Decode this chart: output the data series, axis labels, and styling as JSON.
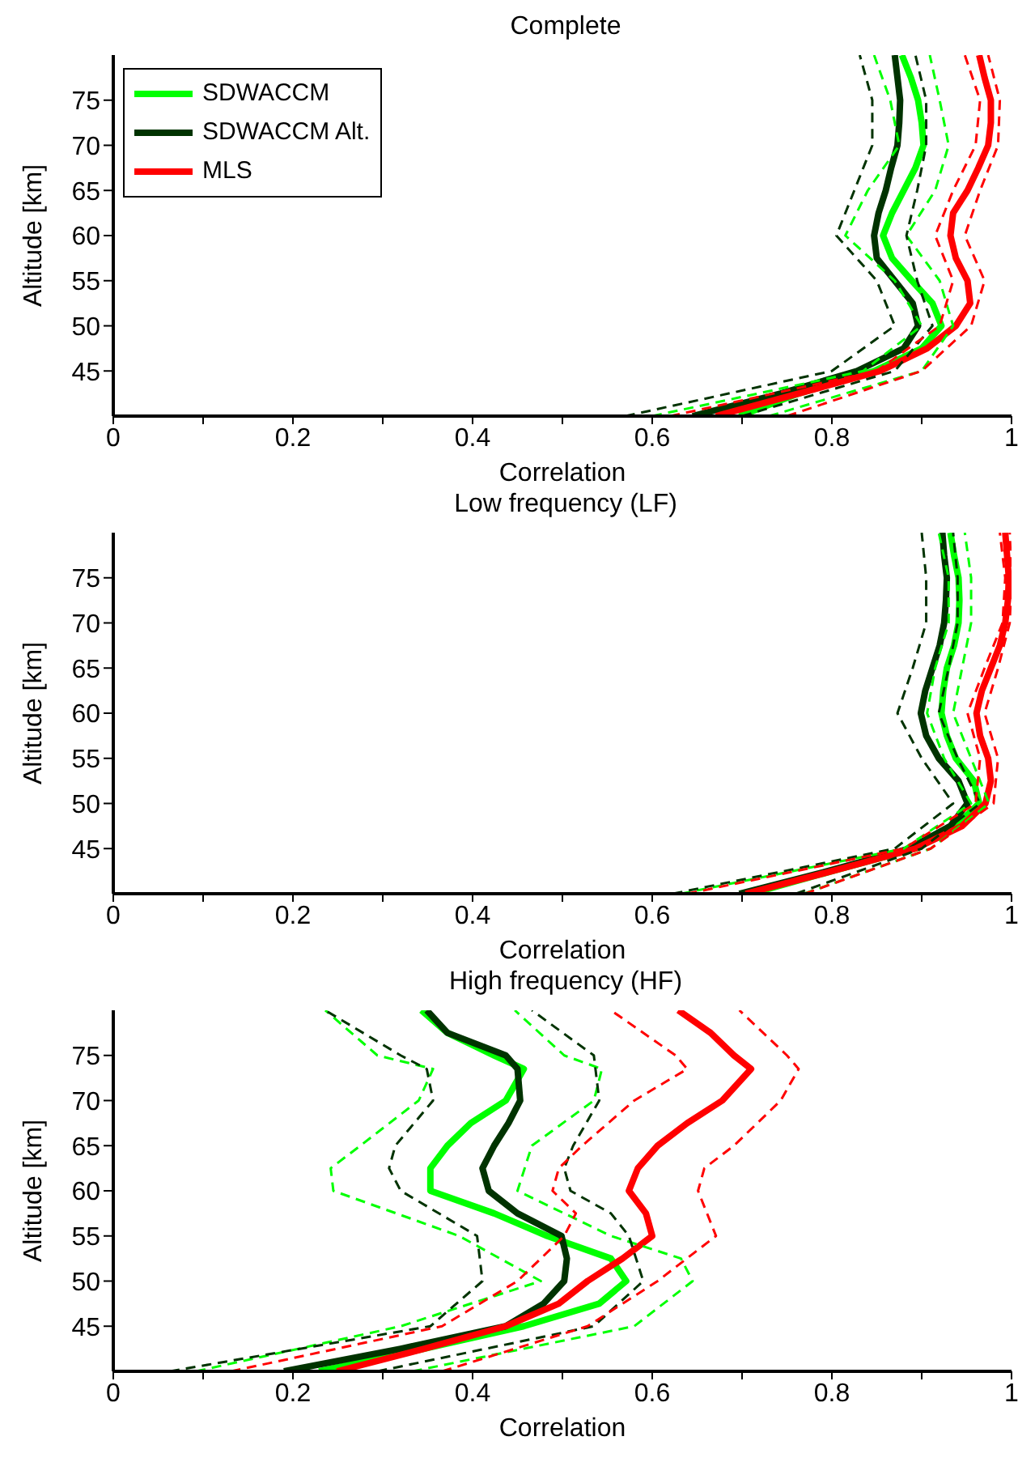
{
  "chart_data": [
    {
      "type": "line",
      "title": "Complete",
      "xlabel": "Correlation",
      "ylabel": "Altitude [km]",
      "xlim": [
        0,
        1
      ],
      "xticks": [
        0,
        {
          "value": 0.1,
          "label": null
        },
        0.2,
        {
          "value": 0.3,
          "label": null
        },
        0.4,
        {
          "value": 0.5,
          "label": null
        },
        0.6,
        {
          "value": 0.7,
          "label": null
        },
        0.8,
        {
          "value": 0.9,
          "label": null
        },
        1
      ],
      "ylim": [
        40,
        80
      ],
      "yticks": [
        45,
        50,
        55,
        60,
        65,
        70,
        75
      ],
      "legend": "top left",
      "series": [
        {
          "name": "SDWACCM",
          "color": "#00ff00",
          "x": [
            0.697,
            0.763,
            0.847,
            0.9,
            0.922,
            0.912,
            0.889,
            0.867,
            0.857,
            0.867,
            0.88,
            0.893,
            0.902,
            0.9,
            0.896,
            0.888,
            0.878
          ],
          "values": [
            40,
            42.5,
            45,
            47.5,
            50,
            52.5,
            55,
            57.5,
            60,
            62.5,
            65,
            67.5,
            70,
            72.5,
            75,
            77.5,
            80
          ]
        },
        {
          "name": "SDWACCM Alt.",
          "color": "#003300",
          "x": [
            0.645,
            0.743,
            0.828,
            0.88,
            0.896,
            0.89,
            0.87,
            0.85,
            0.847,
            0.852,
            0.86,
            0.866,
            0.873,
            0.875,
            0.876,
            0.873,
            0.87
          ],
          "values": [
            40,
            42.5,
            45,
            47.5,
            50,
            52.5,
            55,
            57.5,
            60,
            62.5,
            65,
            67.5,
            70,
            72.5,
            75,
            77.5,
            80
          ]
        },
        {
          "name": "MLS",
          "color": "#ff0000",
          "x": [
            0.671,
            0.763,
            0.854,
            0.906,
            0.938,
            0.954,
            0.951,
            0.938,
            0.932,
            0.935,
            0.951,
            0.963,
            0.974,
            0.977,
            0.977,
            0.97,
            0.964
          ],
          "values": [
            40,
            42.5,
            45,
            47.5,
            50,
            52.5,
            55,
            57.5,
            60,
            62.5,
            65,
            67.5,
            70,
            72.5,
            75,
            77.5,
            80
          ]
        },
        {
          "color": "#00ff00",
          "line_style": "dashed",
          "x": [
            0.6,
            0.835,
            0.9,
            0.87,
            0.815,
            0.84,
            0.875,
            0.865,
            0.847
          ],
          "values": [
            40,
            45,
            50,
            55,
            60,
            65,
            70,
            75,
            80
          ]
        },
        {
          "color": "#00ff00",
          "line_style": "dashed",
          "x": [
            0.73,
            0.9,
            0.935,
            0.92,
            0.883,
            0.915,
            0.93,
            0.92,
            0.909
          ],
          "values": [
            40,
            45,
            50,
            55,
            60,
            65,
            70,
            75,
            80
          ]
        },
        {
          "color": "#003300",
          "line_style": "dashed",
          "x": [
            0.57,
            0.8,
            0.87,
            0.85,
            0.805,
            0.825,
            0.845,
            0.845,
            0.831
          ],
          "values": [
            40,
            45,
            50,
            55,
            60,
            65,
            70,
            75,
            80
          ]
        },
        {
          "color": "#003300",
          "line_style": "dashed",
          "x": [
            0.7,
            0.87,
            0.912,
            0.895,
            0.883,
            0.895,
            0.905,
            0.905,
            0.893
          ],
          "values": [
            40,
            45,
            50,
            55,
            60,
            65,
            70,
            75,
            80
          ]
        },
        {
          "color": "#ff0000",
          "line_style": "dashed",
          "x": [
            0.62,
            0.85,
            0.92,
            0.935,
            0.915,
            0.935,
            0.96,
            0.965,
            0.948
          ],
          "values": [
            40,
            45,
            50,
            55,
            60,
            65,
            70,
            75,
            80
          ]
        },
        {
          "color": "#ff0000",
          "line_style": "dashed",
          "x": [
            0.75,
            0.9,
            0.955,
            0.97,
            0.948,
            0.965,
            0.985,
            0.987,
            0.974
          ],
          "values": [
            40,
            45,
            50,
            55,
            60,
            65,
            70,
            75,
            80
          ]
        }
      ]
    },
    {
      "type": "line",
      "title": "Low frequency (LF)",
      "xlabel": "Correlation",
      "ylabel": "Altitude [km]",
      "xlim": [
        0,
        1
      ],
      "xticks": [
        0,
        {
          "value": 0.1,
          "label": null
        },
        0.2,
        {
          "value": 0.3,
          "label": null
        },
        0.4,
        {
          "value": 0.5,
          "label": null
        },
        0.6,
        {
          "value": 0.7,
          "label": null
        },
        0.8,
        {
          "value": 0.9,
          "label": null
        },
        1
      ],
      "ylim": [
        40,
        80
      ],
      "yticks": [
        45,
        50,
        55,
        60,
        65,
        70,
        75
      ],
      "series": [
        {
          "color": "#00ff00",
          "x": [
            0.71,
            0.8,
            0.893,
            0.938,
            0.964,
            0.958,
            0.938,
            0.928,
            0.922,
            0.924,
            0.928,
            0.936,
            0.941,
            0.942,
            0.941,
            0.936,
            0.932
          ],
          "values": [
            40,
            42.5,
            45,
            47.5,
            50,
            52.5,
            55,
            57.5,
            60,
            62.5,
            65,
            67.5,
            70,
            72.5,
            75,
            77.5,
            80
          ]
        },
        {
          "color": "#003300",
          "x": [
            0.697,
            0.795,
            0.886,
            0.932,
            0.951,
            0.941,
            0.919,
            0.905,
            0.899,
            0.904,
            0.912,
            0.92,
            0.925,
            0.927,
            0.928,
            0.925,
            0.923
          ],
          "values": [
            40,
            42.5,
            45,
            47.5,
            50,
            52.5,
            55,
            57.5,
            60,
            62.5,
            65,
            67.5,
            70,
            72.5,
            75,
            77.5,
            80
          ]
        },
        {
          "color": "#ff0000",
          "x": [
            0.704,
            0.8,
            0.893,
            0.945,
            0.971,
            0.977,
            0.974,
            0.965,
            0.961,
            0.967,
            0.977,
            0.987,
            0.993,
            0.996,
            0.997,
            0.995,
            0.993
          ],
          "values": [
            40,
            42.5,
            45,
            47.5,
            50,
            52.5,
            55,
            57.5,
            60,
            62.5,
            65,
            67.5,
            70,
            72.5,
            75,
            77.5,
            80
          ]
        },
        {
          "color": "#00ff00",
          "line_style": "dashed",
          "x": [
            0.632,
            0.88,
            0.955,
            0.925,
            0.906,
            0.915,
            0.93,
            0.93,
            0.919
          ],
          "values": [
            40,
            45,
            50,
            55,
            60,
            65,
            70,
            75,
            80
          ]
        },
        {
          "color": "#00ff00",
          "line_style": "dashed",
          "x": [
            0.769,
            0.91,
            0.975,
            0.955,
            0.935,
            0.945,
            0.955,
            0.955,
            0.948
          ],
          "values": [
            40,
            45,
            50,
            55,
            60,
            65,
            70,
            75,
            80
          ]
        },
        {
          "color": "#003300",
          "line_style": "dashed",
          "x": [
            0.623,
            0.87,
            0.935,
            0.9,
            0.873,
            0.89,
            0.905,
            0.905,
            0.9
          ],
          "values": [
            40,
            45,
            50,
            55,
            60,
            65,
            70,
            75,
            80
          ]
        },
        {
          "color": "#003300",
          "line_style": "dashed",
          "x": [
            0.76,
            0.9,
            0.965,
            0.94,
            0.919,
            0.93,
            0.94,
            0.94,
            0.935
          ],
          "values": [
            40,
            45,
            50,
            55,
            60,
            65,
            70,
            75,
            80
          ]
        },
        {
          "color": "#ff0000",
          "line_style": "dashed",
          "x": [
            0.639,
            0.88,
            0.96,
            0.965,
            0.951,
            0.97,
            0.99,
            0.993,
            0.987
          ],
          "values": [
            40,
            45,
            50,
            55,
            60,
            65,
            70,
            75,
            80
          ]
        },
        {
          "color": "#ff0000",
          "line_style": "dashed",
          "x": [
            0.77,
            0.91,
            0.98,
            0.985,
            0.97,
            0.985,
            0.998,
            1.0,
            0.998
          ],
          "values": [
            40,
            45,
            50,
            55,
            60,
            65,
            70,
            75,
            80
          ]
        }
      ]
    },
    {
      "type": "line",
      "title": "High frequency (HF)",
      "xlabel": "Correlation",
      "ylabel": "Altitude [km]",
      "xlim": [
        0,
        1
      ],
      "xticks": [
        0,
        {
          "value": 0.1,
          "label": null
        },
        0.2,
        {
          "value": 0.3,
          "label": null
        },
        0.4,
        {
          "value": 0.5,
          "label": null
        },
        0.6,
        {
          "value": 0.7,
          "label": null
        },
        0.8,
        {
          "value": 0.9,
          "label": null
        },
        1
      ],
      "ylim": [
        40,
        80
      ],
      "yticks": [
        45,
        50,
        55,
        60,
        65,
        70,
        75
      ],
      "series": [
        {
          "color": "#00ff00",
          "x": [
            0.229,
            0.346,
            0.457,
            0.541,
            0.571,
            0.554,
            0.483,
            0.424,
            0.353,
            0.353,
            0.372,
            0.398,
            0.437,
            0.457,
            0.424,
            0.372,
            0.343
          ],
          "values": [
            40,
            42.5,
            45,
            47.5,
            50,
            52.5,
            55,
            57.5,
            60,
            62.5,
            65,
            67.5,
            70,
            73.5,
            75,
            77.5,
            80
          ]
        },
        {
          "color": "#003300",
          "x": [
            0.19,
            0.32,
            0.437,
            0.479,
            0.502,
            0.505,
            0.499,
            0.45,
            0.418,
            0.411,
            0.424,
            0.44,
            0.453,
            0.45,
            0.437,
            0.372,
            0.349
          ],
          "values": [
            40,
            42.5,
            45,
            47.5,
            50,
            52.5,
            55,
            57.5,
            60,
            62.5,
            65,
            67.5,
            70,
            73.5,
            75,
            77.5,
            80
          ]
        },
        {
          "color": "#ff0000",
          "x": [
            0.249,
            0.346,
            0.437,
            0.496,
            0.528,
            0.567,
            0.6,
            0.593,
            0.574,
            0.584,
            0.606,
            0.639,
            0.678,
            0.71,
            0.691,
            0.665,
            0.629
          ],
          "values": [
            40,
            42.5,
            45,
            47.5,
            50,
            52.5,
            55,
            57.5,
            60,
            62.5,
            65,
            67.5,
            70,
            73.5,
            75,
            77.5,
            80
          ]
        },
        {
          "color": "#00ff00",
          "line_style": "dashed",
          "x": [
            0.092,
            0.32,
            0.476,
            0.385,
            0.245,
            0.242,
            0.275,
            0.34,
            0.356,
            0.294,
            0.236
          ],
          "values": [
            40,
            45,
            50,
            55,
            60,
            62.5,
            65,
            70,
            73.5,
            75,
            80
          ]
        },
        {
          "color": "#00ff00",
          "line_style": "dashed",
          "x": [
            0.333,
            0.58,
            0.645,
            0.632,
            0.554,
            0.45,
            0.466,
            0.535,
            0.544,
            0.502,
            0.447
          ],
          "values": [
            40,
            45,
            50,
            52.5,
            55,
            60,
            65,
            70,
            73.5,
            75,
            80
          ]
        },
        {
          "color": "#003300",
          "line_style": "dashed",
          "x": [
            0.063,
            0.353,
            0.411,
            0.405,
            0.32,
            0.307,
            0.314,
            0.356,
            0.349,
            0.32,
            0.236
          ],
          "values": [
            40,
            45,
            50,
            55,
            60,
            62.5,
            65,
            70,
            73.5,
            75,
            80
          ]
        },
        {
          "color": "#003300",
          "line_style": "dashed",
          "x": [
            0.294,
            0.535,
            0.59,
            0.574,
            0.554,
            0.509,
            0.502,
            0.512,
            0.541,
            0.535,
            0.466
          ],
          "values": [
            40,
            45,
            50,
            55,
            57.5,
            60,
            62.5,
            65,
            70,
            75,
            80
          ]
        },
        {
          "color": "#ff0000",
          "line_style": "dashed",
          "x": [
            0.131,
            0.366,
            0.45,
            0.502,
            0.515,
            0.489,
            0.496,
            0.522,
            0.58,
            0.639,
            0.626,
            0.554
          ],
          "values": [
            40,
            45,
            50,
            55,
            57.5,
            60,
            62.5,
            65,
            70,
            73.5,
            75,
            80
          ]
        },
        {
          "color": "#ff0000",
          "line_style": "dashed",
          "x": [
            0.366,
            0.528,
            0.606,
            0.671,
            0.651,
            0.658,
            0.691,
            0.743,
            0.763,
            0.75,
            0.697
          ],
          "values": [
            40,
            45,
            50,
            55,
            60,
            62.5,
            65,
            70,
            73.5,
            75,
            80
          ]
        }
      ]
    }
  ]
}
